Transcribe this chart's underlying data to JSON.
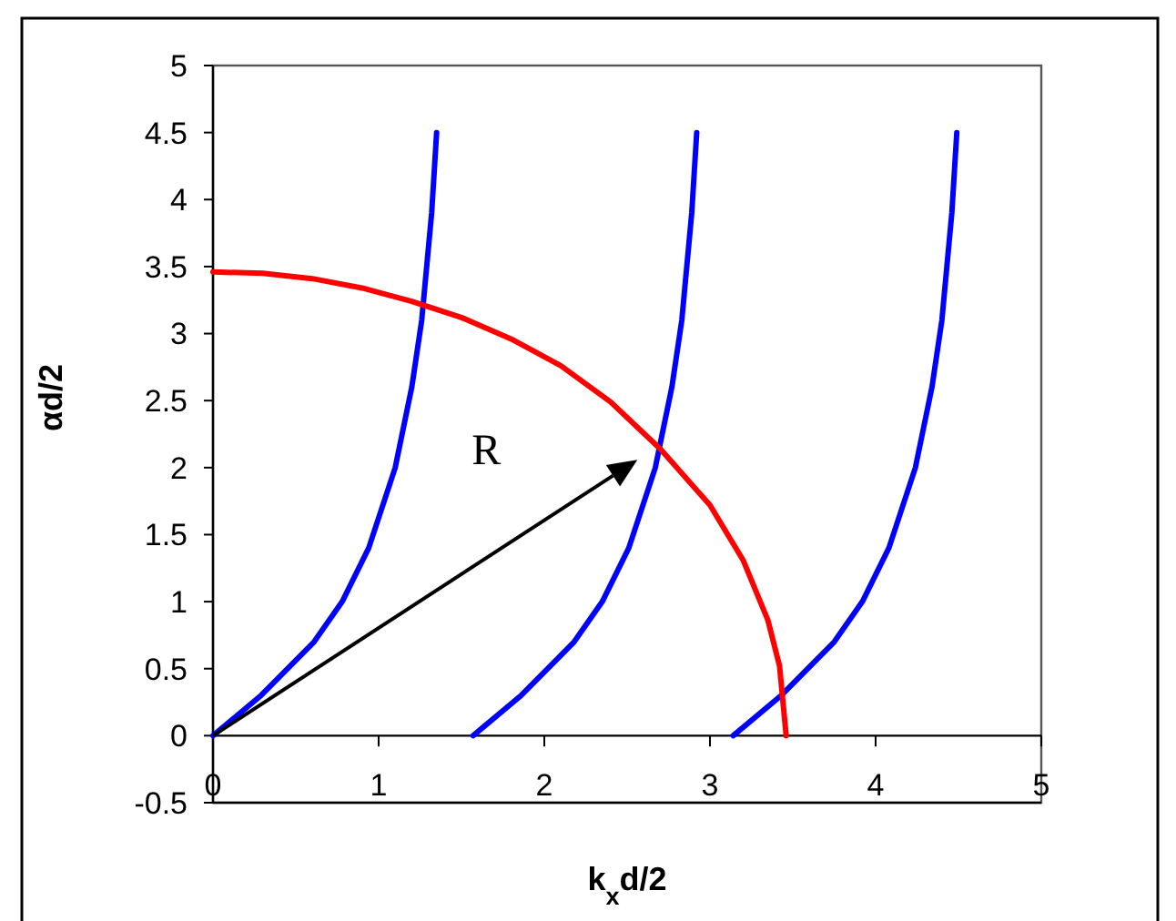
{
  "chart_data": {
    "type": "line",
    "xlabel": "k$_{x}$d/2",
    "ylabel": "αd/2",
    "xlim": [
      0,
      5
    ],
    "xticks": [
      0,
      1,
      2,
      3,
      4,
      5
    ],
    "ylim": [
      -0.5,
      5
    ],
    "yticks": [
      -0.5,
      0,
      0.5,
      1,
      1.5,
      2,
      2.5,
      3,
      3.5,
      4,
      4.5,
      5
    ],
    "marker": "none",
    "line_style": "solid",
    "series": [
      {
        "color": "#0000ff",
        "x": [
          0,
          0.29,
          0.61,
          0.78,
          0.94,
          1.1,
          1.2,
          1.26,
          1.32,
          1.35
        ],
        "values": [
          0,
          0.3,
          0.7,
          1,
          1.4,
          2,
          2.6,
          3.1,
          3.9,
          4.5
        ]
      },
      {
        "color": "#0000ff",
        "x": [
          1.57,
          1.86,
          2.18,
          2.35,
          2.51,
          2.67,
          2.77,
          2.83,
          2.89,
          2.92
        ],
        "values": [
          0,
          0.3,
          0.7,
          1,
          1.4,
          2,
          2.6,
          3.1,
          3.9,
          4.5
        ]
      },
      {
        "color": "#0000ff",
        "x": [
          3.14,
          3.43,
          3.75,
          3.92,
          4.08,
          4.24,
          4.34,
          4.4,
          4.46,
          4.49
        ],
        "values": [
          0,
          0.3,
          0.7,
          1,
          1.4,
          2,
          2.6,
          3.1,
          3.9,
          4.5
        ]
      },
      {
        "color": "#ff0000",
        "x": [
          0,
          0.3,
          0.6,
          0.9,
          1.2,
          1.5,
          1.8,
          2.1,
          2.4,
          2.7,
          3,
          3.2,
          3.35,
          3.42,
          3.46
        ],
        "values": [
          3.46,
          3.45,
          3.41,
          3.34,
          3.24,
          3.12,
          2.96,
          2.76,
          2.49,
          2.14,
          1.72,
          1.31,
          0.86,
          0.52,
          0
        ]
      }
    ],
    "annotations": [
      "R"
    ]
  }
}
